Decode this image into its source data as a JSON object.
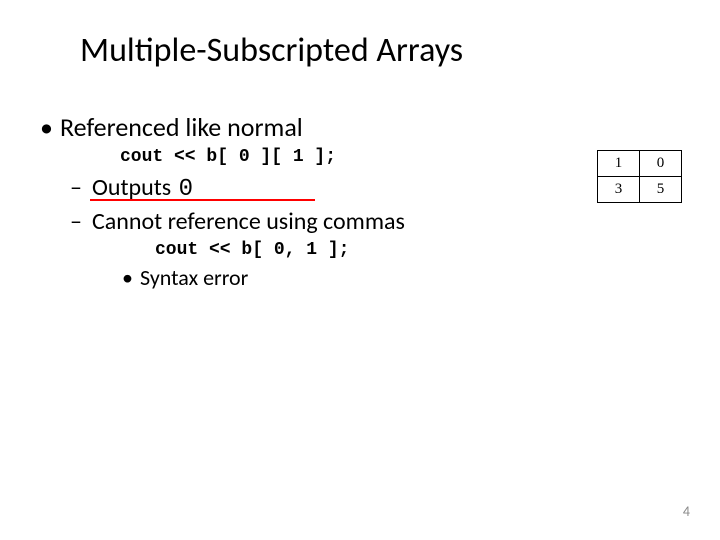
{
  "title": "Multiple-Subscripted Arrays",
  "bullet1": "Referenced like normal",
  "code1": "cout << b[ 0 ][ 1 ];",
  "bullet2a_prefix": "Outputs ",
  "bullet2a_value": "0",
  "bullet2b": "Cannot reference using commas",
  "code2": "cout << b[ 0, 1 ];",
  "bullet3": "Syntax error",
  "matrix": {
    "rows": [
      [
        "1",
        "0"
      ],
      [
        "3",
        "5"
      ]
    ]
  },
  "page_number": "4",
  "colors": {
    "text": "#000000",
    "underline": "#ff0000",
    "pagenum": "#898989",
    "background": "#ffffff",
    "border": "#000000"
  }
}
